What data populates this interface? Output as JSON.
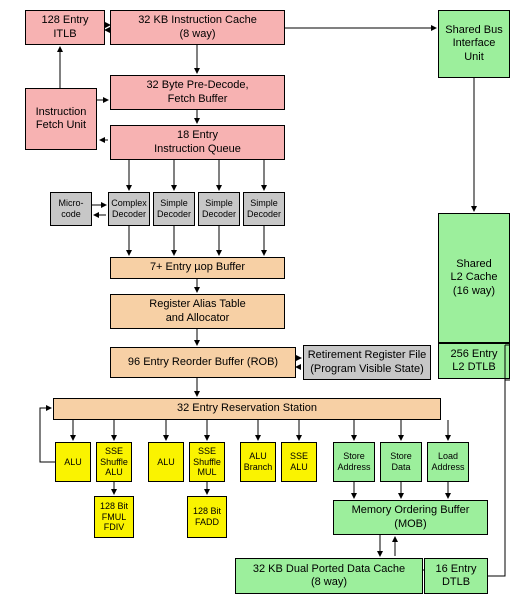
{
  "colors": {
    "pink": "#f7b2b2",
    "gray": "#c7c7c7",
    "peach": "#f7d0a5",
    "yellow": "#faf300",
    "green": "#9cef9c",
    "border": "#000000",
    "bg": "#ffffff"
  },
  "fontsize_default": 11,
  "blocks": {
    "itlb": "128 Entry\nITLB",
    "icache": "32 KB Instruction Cache\n(8 way)",
    "bus_unit": "Shared Bus\nInterface\nUnit",
    "ifetch": "Instruction\nFetch Unit",
    "predecode": "32 Byte Pre-Decode,\nFetch Buffer",
    "iqueue": "18 Entry\nInstruction Queue",
    "microcode": "Micro-\ncode",
    "dec_complex": "Complex\nDecoder",
    "dec_simple1": "Simple\nDecoder",
    "dec_simple2": "Simple\nDecoder",
    "dec_simple3": "Simple\nDecoder",
    "uop_buf": "7+ Entry µop Buffer",
    "rat": "Register Alias Table\nand Allocator",
    "rob": "96 Entry Reorder Buffer (ROB)",
    "rrf": "Retirement Register File\n(Program Visible State)",
    "l2": "Shared\nL2 Cache\n(16 way)",
    "l2dtlb": "256 Entry\nL2 DTLB",
    "resv": "32 Entry Reservation Station",
    "alu1": "ALU",
    "sse_shuf_alu": "SSE\nShuffle\nALU",
    "alu2": "ALU",
    "sse_shuf_mul": "SSE\nShuffle\nMUL",
    "alu_branch": "ALU\nBranch",
    "sse_alu": "SSE\nALU",
    "store_addr": "Store\nAddress",
    "store_data": "Store\nData",
    "load_addr": "Load\nAddress",
    "fmul": "128 Bit\nFMUL\nFDIV",
    "fadd": "128 Bit\nFADD",
    "mob": "Memory Ordering Buffer\n(MOB)",
    "dcache": "32 KB Dual Ported Data Cache\n(8 way)",
    "dtlb": "16 Entry\nDTLB"
  }
}
